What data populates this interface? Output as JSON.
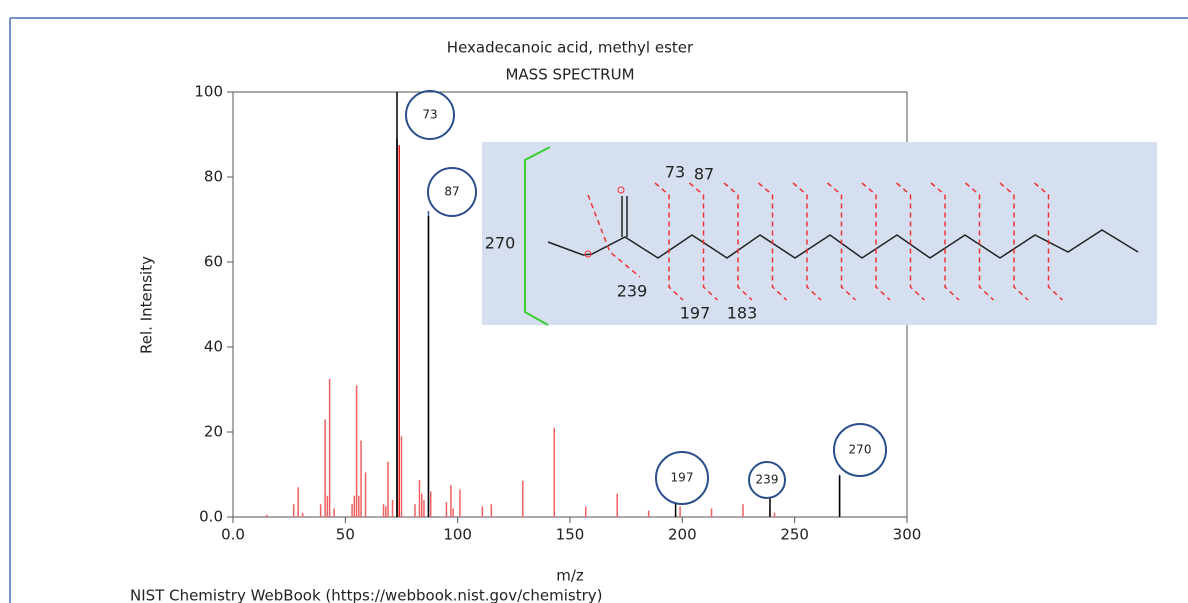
{
  "chart_data": {
    "type": "stem",
    "title": "Hexadecanoic acid, methyl ester",
    "subtitle": "MASS SPECTRUM",
    "x_label": "m/z",
    "y_label": "Rel. Intensity",
    "footer": "NIST Chemistry WebBook (https://webbook.nist.gov/chemistry)",
    "x": [
      15,
      27,
      29,
      31,
      39,
      41,
      42,
      43,
      45,
      53,
      54,
      55,
      56,
      57,
      59,
      67,
      68,
      69,
      71,
      73,
      74,
      75,
      81,
      83,
      84,
      85,
      87,
      88,
      95,
      97,
      98,
      101,
      111,
      115,
      129,
      143,
      157,
      171,
      185,
      199,
      213,
      227,
      239,
      241,
      270
    ],
    "values": [
      0.5,
      3,
      7,
      1,
      3,
      23,
      5,
      32.5,
      2,
      3,
      5,
      31,
      5,
      18,
      10.5,
      3,
      2.5,
      13,
      4,
      100,
      87.5,
      19,
      3,
      8.7,
      5.5,
      4,
      72,
      6,
      3.5,
      7.5,
      2,
      6.5,
      2.5,
      3,
      8.5,
      21,
      2.5,
      5.5,
      1.5,
      2.5,
      2,
      3,
      2,
      1,
      10
    ],
    "colors": [
      "#f06060",
      "#f06060",
      "#f06060",
      "#f06060",
      "#f06060",
      "#f06060",
      "#f06060",
      "#f06060",
      "#f06060",
      "#f06060",
      "#f06060",
      "#f06060",
      "#f06060",
      "#f06060",
      "#f06060",
      "#f06060",
      "#f06060",
      "#f06060",
      "#f06060",
      "#000000",
      "#f02020",
      "#f06060",
      "#f06060",
      "#f06060",
      "#f06060",
      "#f06060",
      "#3a5a9a",
      "#f06060",
      "#f06060",
      "#f06060",
      "#f06060",
      "#f06060",
      "#f06060",
      "#f06060",
      "#f06060",
      "#f06060",
      "#f06060",
      "#f06060",
      "#f06060",
      "#f06060",
      "#f06060",
      "#f06060",
      "#f06060",
      "#f06060",
      "#3a5a9a"
    ],
    "xlim": [
      0,
      300
    ],
    "xticks": [
      {
        "value": 0,
        "label": "0.0"
      },
      50,
      100,
      150,
      200,
      250,
      300
    ],
    "ylim": [
      0,
      100
    ],
    "yticks": [
      {
        "value": 0,
        "label": "0.0"
      },
      20,
      40,
      60,
      80,
      100
    ],
    "annotations": [
      {
        "label": "73",
        "x": 73
      },
      {
        "label": "87",
        "x": 87
      },
      {
        "label": "197",
        "x": 197
      },
      {
        "label": "239",
        "x": 239
      },
      {
        "label": "270",
        "x": 270
      }
    ],
    "structure": {
      "labels": [
        "270",
        "73",
        "87",
        "239",
        "197",
        "183"
      ]
    }
  }
}
